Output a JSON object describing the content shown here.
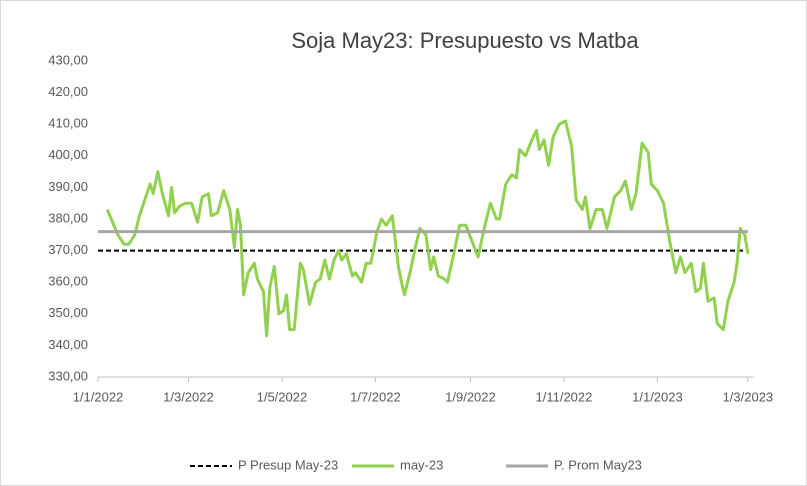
{
  "chart_data": {
    "type": "line",
    "title": "Soja May23: Presupuesto vs Matba",
    "xlim": [
      "2022-01-01",
      "2023-03-05"
    ],
    "xticks": [
      {
        "value": "2022-01-01",
        "label": "1/1/2022"
      },
      {
        "value": "2022-03-01",
        "label": "1/3/2022"
      },
      {
        "value": "2022-05-01",
        "label": "1/5/2022"
      },
      {
        "value": "2022-07-01",
        "label": "1/7/2022"
      },
      {
        "value": "2022-09-01",
        "label": "1/9/2022"
      },
      {
        "value": "2022-11-01",
        "label": "1/11/2022"
      },
      {
        "value": "2023-01-01",
        "label": "1/1/2023"
      },
      {
        "value": "2023-03-01",
        "label": "1/3/2023"
      }
    ],
    "ylim": [
      330,
      430
    ],
    "yticks": [
      {
        "value": 330,
        "label": "330,00"
      },
      {
        "value": 340,
        "label": "340,00"
      },
      {
        "value": 350,
        "label": "350,00"
      },
      {
        "value": 360,
        "label": "360,00"
      },
      {
        "value": 370,
        "label": "370,00"
      },
      {
        "value": 380,
        "label": "380,00"
      },
      {
        "value": 390,
        "label": "390,00"
      },
      {
        "value": 400,
        "label": "400,00"
      },
      {
        "value": 410,
        "label": "410,00"
      },
      {
        "value": 420,
        "label": "420,00"
      },
      {
        "value": 430,
        "label": "430,00"
      }
    ],
    "grid": false,
    "legend": "bottom",
    "series": [
      {
        "name": "P Presup May-23",
        "color": "#000000",
        "dash": true,
        "x": [
          "2022-01-01",
          "2023-03-01"
        ],
        "values": [
          370,
          370
        ]
      },
      {
        "name": "may-23",
        "color": "#92d050",
        "dash": false,
        "x": [
          "2022-01-07",
          "2022-01-14",
          "2022-01-18",
          "2022-01-21",
          "2022-01-25",
          "2022-01-28",
          "2022-02-04",
          "2022-02-06",
          "2022-02-09",
          "2022-02-12",
          "2022-02-16",
          "2022-02-18",
          "2022-02-20",
          "2022-02-23",
          "2022-02-27",
          "2022-03-03",
          "2022-03-07",
          "2022-03-10",
          "2022-03-14",
          "2022-03-16",
          "2022-03-20",
          "2022-03-24",
          "2022-03-28",
          "2022-03-31",
          "2022-04-02",
          "2022-04-04",
          "2022-04-06",
          "2022-04-09",
          "2022-04-13",
          "2022-04-15",
          "2022-04-19",
          "2022-04-21",
          "2022-04-23",
          "2022-04-26",
          "2022-04-29",
          "2022-05-02",
          "2022-05-04",
          "2022-05-06",
          "2022-05-09",
          "2022-05-13",
          "2022-05-15",
          "2022-05-19",
          "2022-05-23",
          "2022-05-26",
          "2022-05-29",
          "2022-06-01",
          "2022-06-04",
          "2022-06-07",
          "2022-06-09",
          "2022-06-12",
          "2022-06-16",
          "2022-06-18",
          "2022-06-22",
          "2022-06-25",
          "2022-06-28",
          "2022-07-02",
          "2022-07-05",
          "2022-07-08",
          "2022-07-12",
          "2022-07-16",
          "2022-07-18",
          "2022-07-20",
          "2022-07-24",
          "2022-07-27",
          "2022-07-30",
          "2022-08-03",
          "2022-08-06",
          "2022-08-08",
          "2022-08-11",
          "2022-08-15",
          "2022-08-17",
          "2022-08-22",
          "2022-08-25",
          "2022-08-29",
          "2022-09-02",
          "2022-09-06",
          "2022-09-10",
          "2022-09-14",
          "2022-09-18",
          "2022-09-20",
          "2022-09-24",
          "2022-09-28",
          "2022-10-01",
          "2022-10-03",
          "2022-10-07",
          "2022-10-11",
          "2022-10-14",
          "2022-10-16",
          "2022-10-19",
          "2022-10-22",
          "2022-10-25",
          "2022-10-29",
          "2022-11-02",
          "2022-11-06",
          "2022-11-09",
          "2022-11-13",
          "2022-11-15",
          "2022-11-18",
          "2022-11-22",
          "2022-11-26",
          "2022-11-29",
          "2022-12-04",
          "2022-12-08",
          "2022-12-11",
          "2022-12-15",
          "2022-12-18",
          "2022-12-22",
          "2022-12-26",
          "2022-12-28",
          "2023-01-01",
          "2023-01-05",
          "2023-01-09",
          "2023-01-13",
          "2023-01-16",
          "2023-01-19",
          "2023-01-23",
          "2023-01-26",
          "2023-01-29",
          "2023-01-31",
          "2023-02-03",
          "2023-02-07",
          "2023-02-09",
          "2023-02-13",
          "2023-02-16",
          "2023-02-20",
          "2023-02-22",
          "2023-02-24",
          "2023-02-27",
          "2023-03-01"
        ],
        "values": [
          383,
          375,
          372,
          372,
          375,
          381,
          391,
          388,
          395,
          388,
          381,
          390,
          382,
          384,
          385,
          385,
          379,
          387,
          388,
          381,
          382,
          389,
          383,
          371,
          383,
          378,
          356,
          363,
          366,
          361,
          357,
          343,
          358,
          365,
          350,
          351,
          356,
          345,
          345,
          366,
          364,
          353,
          360,
          361,
          367,
          361,
          367,
          370,
          367,
          369,
          362,
          363,
          360,
          366,
          366,
          376,
          380,
          378,
          381,
          365,
          360,
          356,
          364,
          371,
          377,
          375,
          364,
          368,
          362,
          361,
          360,
          371,
          378,
          378,
          373,
          368,
          377,
          385,
          380,
          380,
          391,
          394,
          393,
          402,
          400,
          405,
          408,
          402,
          405,
          397,
          406,
          410,
          411,
          403,
          386,
          383,
          387,
          377,
          383,
          383,
          377,
          387,
          389,
          392,
          383,
          388,
          404,
          401,
          391,
          389,
          385,
          373,
          363,
          368,
          363,
          366,
          357,
          358,
          366,
          354,
          355,
          347,
          345,
          354,
          360,
          366,
          377,
          375,
          369
        ]
      },
      {
        "name": "P. Prom May23",
        "color": "#a6a6a6",
        "dash": false,
        "x": [
          "2022-01-01",
          "2023-03-01"
        ],
        "values": [
          376,
          376
        ]
      }
    ]
  }
}
